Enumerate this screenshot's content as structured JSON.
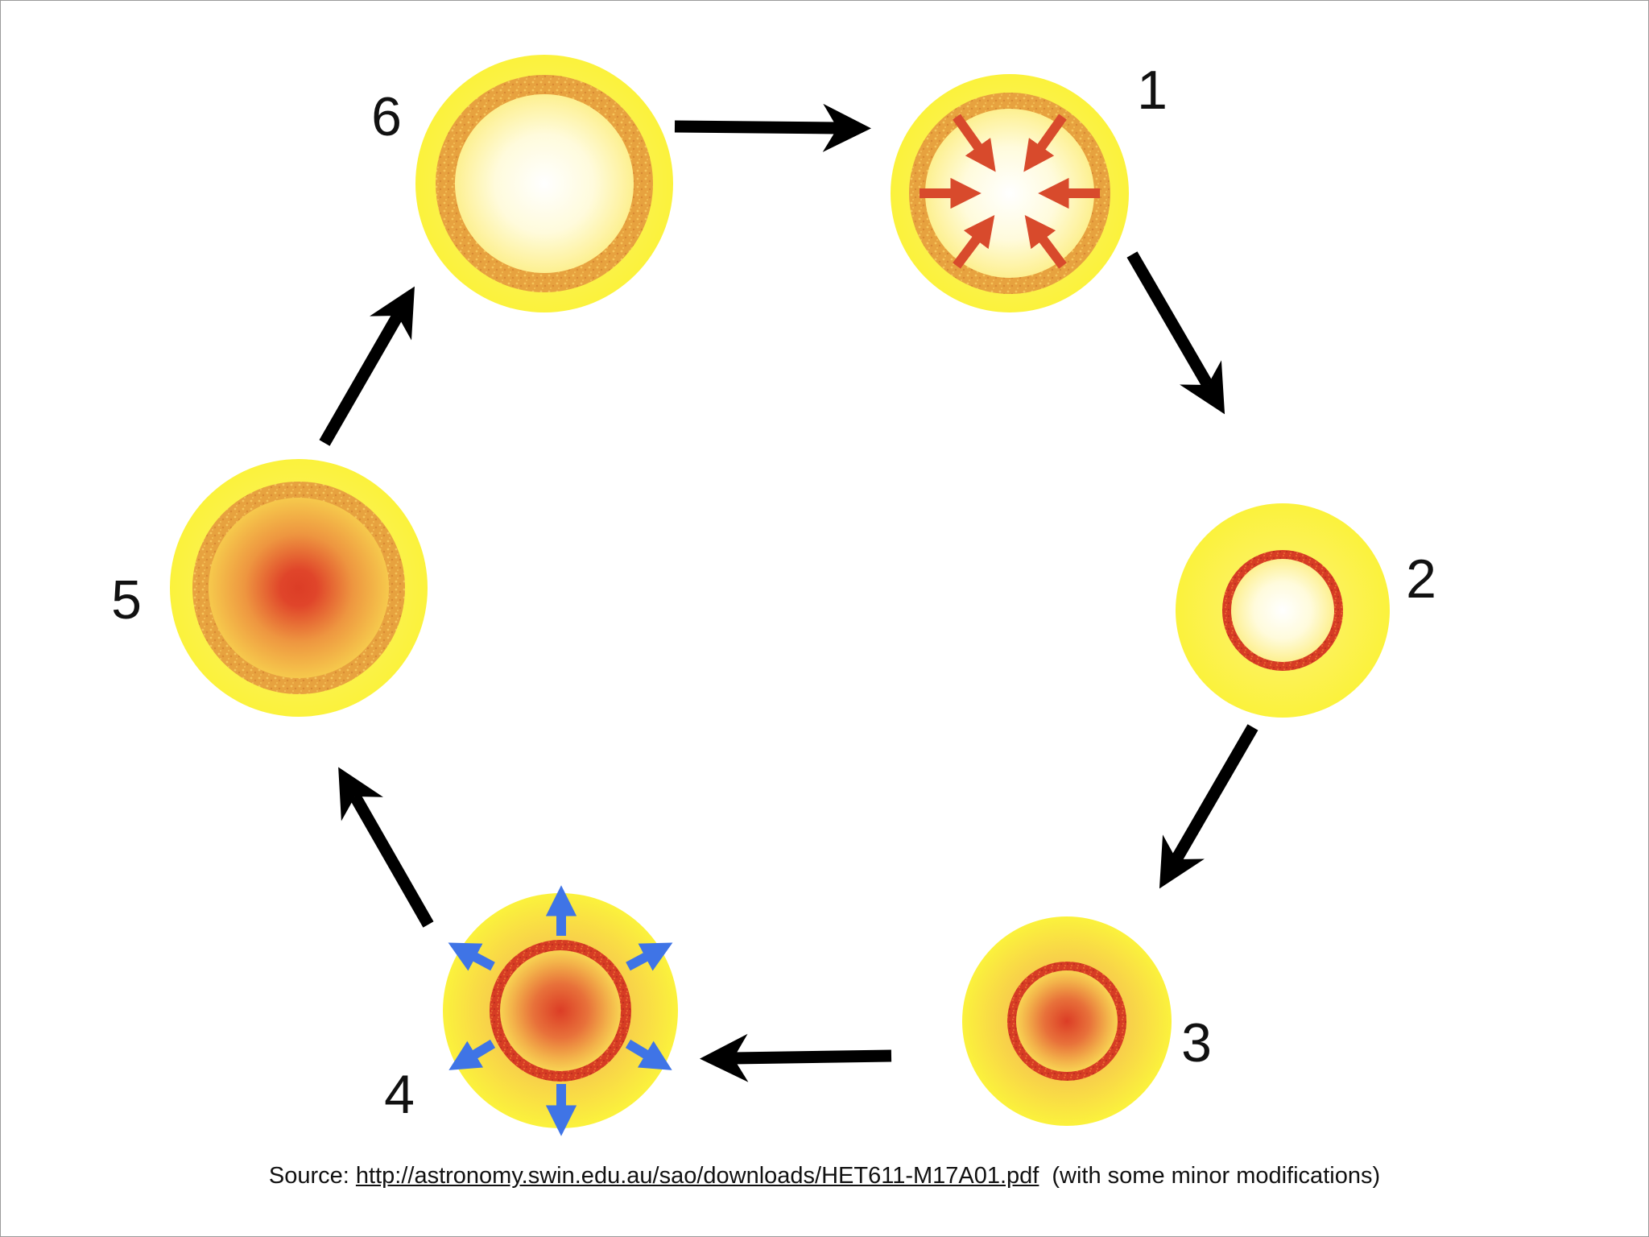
{
  "diagram": {
    "stages": [
      {
        "id": "6",
        "label": "6",
        "variant": "hollow",
        "arrows": "none"
      },
      {
        "id": "1",
        "label": "1",
        "variant": "hollow",
        "arrows": "inward"
      },
      {
        "id": "2",
        "label": "2",
        "variant": "thin-ring",
        "arrows": "none"
      },
      {
        "id": "3",
        "label": "3",
        "variant": "hot-core-ring",
        "arrows": "none"
      },
      {
        "id": "4",
        "label": "4",
        "variant": "hot-core-ring",
        "arrows": "outward"
      },
      {
        "id": "5",
        "label": "5",
        "variant": "hot-core-wide-ring",
        "arrows": "none"
      }
    ],
    "cycle": [
      "6",
      "1",
      "2",
      "3",
      "4",
      "5",
      "6"
    ]
  },
  "source": {
    "prefix": "Source:",
    "link_text": "http://astronomy.swin.edu.au/sao/downloads/HET611-M17A01.pdf",
    "suffix": "(with some minor modifications)"
  },
  "colors": {
    "outer_yellow": "#fbf23c",
    "ring_orange": "#e6a13d",
    "ring_red": "#d63c24",
    "core_red": "#dc3d26",
    "arrow_black": "#000000",
    "inward_arrow": "#d84a2c",
    "outward_arrow": "#3f74e6"
  }
}
